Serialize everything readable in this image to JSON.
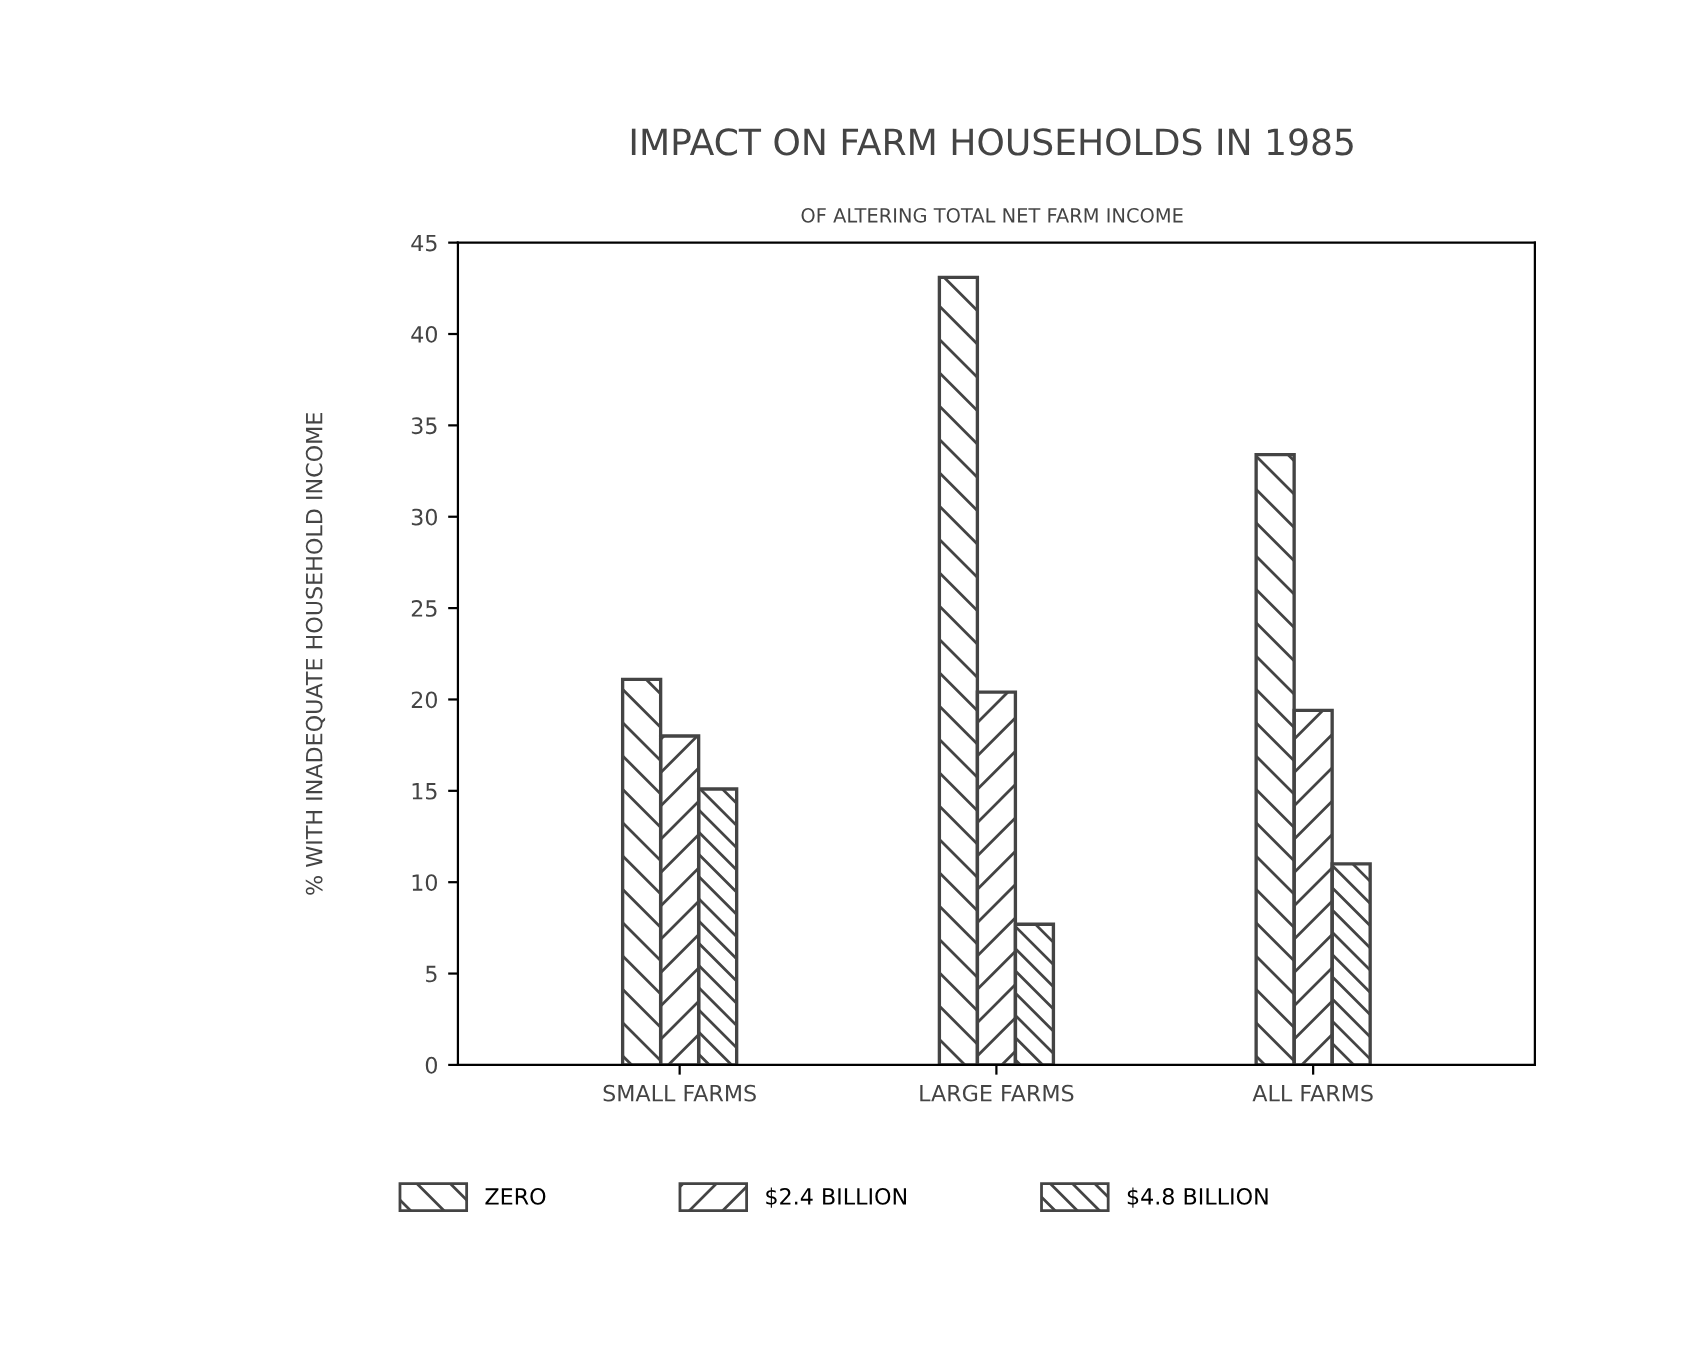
{
  "chart_data": {
    "type": "bar",
    "title": "IMPACT ON FARM HOUSEHOLDS IN 1985",
    "subtitle": "OF ALTERING TOTAL NET FARM INCOME",
    "ylabel": "% WITH INADEQUATE HOUSEHOLD INCOME",
    "categories": [
      "SMALL FARMS",
      "LARGE FARMS",
      "ALL FARMS"
    ],
    "series": [
      {
        "name": "ZERO",
        "color": "#444444",
        "values": [
          21.1,
          43.1,
          33.4
        ]
      },
      {
        "name": "$2.4 BILLION",
        "color": "#444444",
        "values": [
          18.0,
          20.4,
          19.4
        ]
      },
      {
        "name": "$4.8 BILLION",
        "color": "#444444",
        "values": [
          15.1,
          7.7,
          11.0
        ]
      }
    ],
    "ylim": [
      0,
      45
    ],
    "yticks": [
      0,
      5,
      10,
      15,
      20,
      25,
      30,
      35,
      40,
      45
    ],
    "grid": false,
    "legend": "bottom"
  }
}
